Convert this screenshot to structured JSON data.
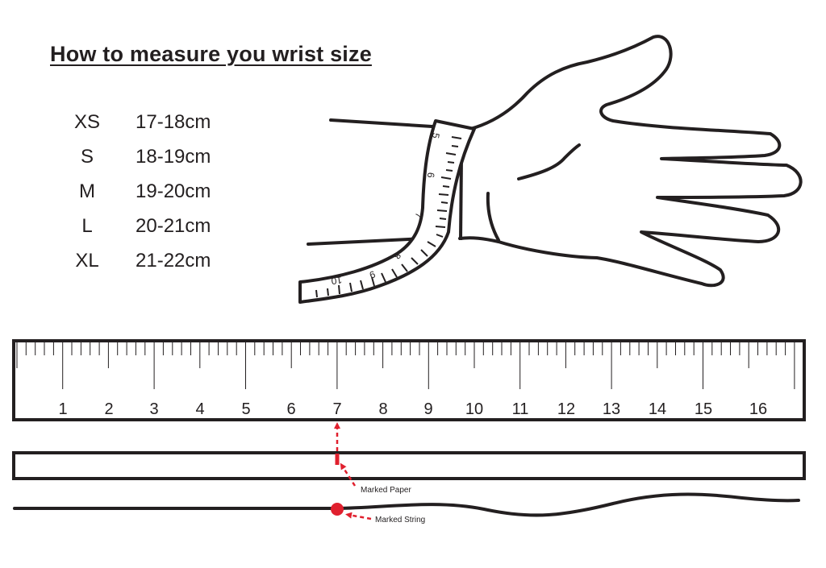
{
  "title": "How to measure you wrist size",
  "sizes": [
    {
      "code": "XS",
      "range": "17-18cm"
    },
    {
      "code": "S",
      "range": "18-19cm"
    },
    {
      "code": "M",
      "range": "19-20cm"
    },
    {
      "code": "L",
      "range": "20-21cm"
    },
    {
      "code": "XL",
      "range": "21-22cm"
    }
  ],
  "ruler": {
    "labels": [
      "1",
      "2",
      "3",
      "4",
      "5",
      "6",
      "7",
      "8",
      "9",
      "10",
      "11",
      "12",
      "13",
      "14",
      "15",
      "16"
    ],
    "marked_value": "7"
  },
  "tape_labels": [
    "5",
    "6",
    "7",
    "8",
    "9",
    "10"
  ],
  "annotations": {
    "marked_paper": "Marked Paper",
    "marked_string": "Marked String"
  },
  "colors": {
    "ink": "#231f20",
    "marker": "#e0202e"
  }
}
